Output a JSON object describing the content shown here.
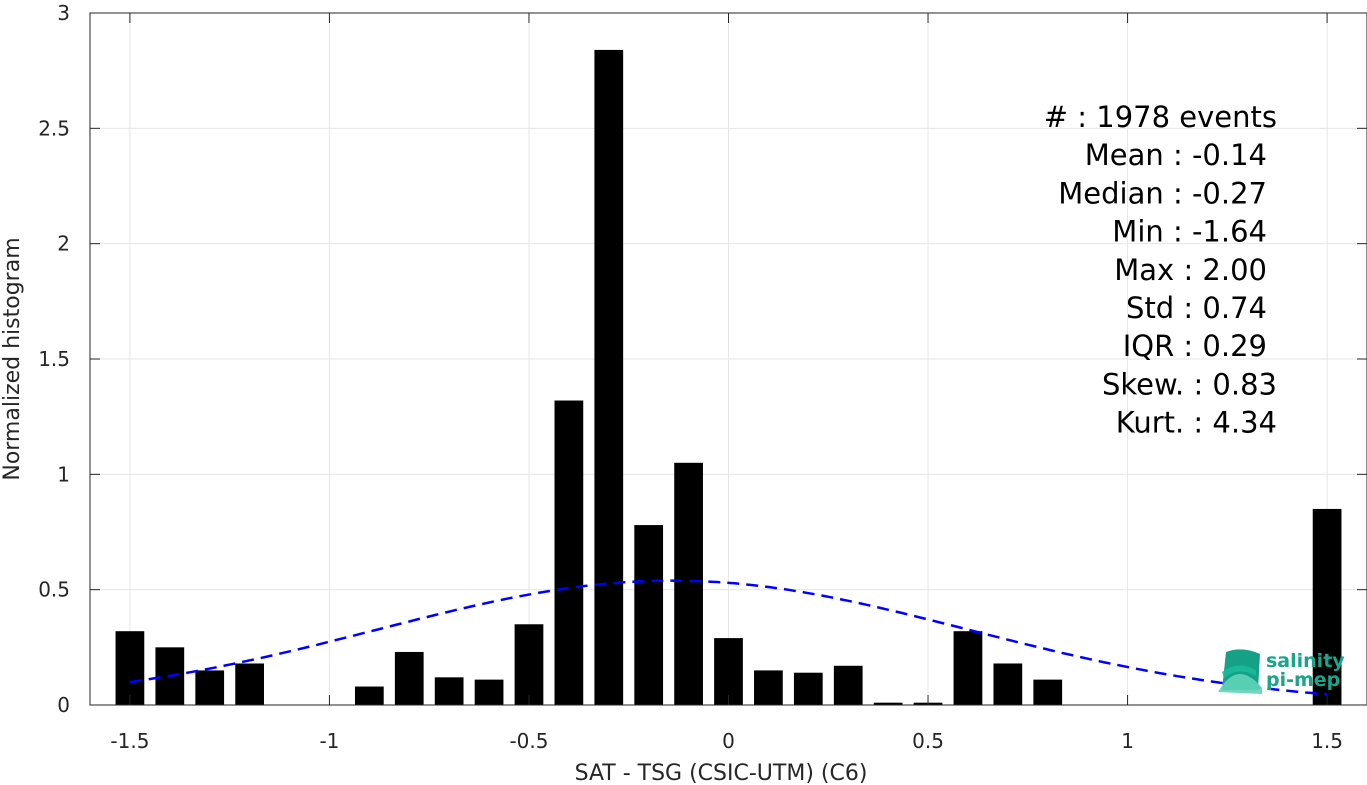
{
  "chart_data": {
    "type": "bar",
    "xlabel": "SAT - TSG (CSIC-UTM) (C6)",
    "ylabel": "Normalized histogram",
    "xlim": [
      -1.6,
      1.6
    ],
    "ylim": [
      0,
      3
    ],
    "xticks": [
      -1.5,
      -1,
      -0.5,
      0,
      0.5,
      1,
      1.5
    ],
    "xtick_labels": [
      "-1.5",
      "-1",
      "-0.5",
      "0",
      "0.5",
      "1",
      "1.5"
    ],
    "yticks": [
      0,
      0.5,
      1,
      1.5,
      2,
      2.5,
      3
    ],
    "ytick_labels": [
      "0",
      "0.5",
      "1",
      "1.5",
      "2",
      "2.5",
      "3"
    ],
    "grid": true,
    "bin_width": 0.1,
    "bar_color": "#000000",
    "x": [
      -1.5,
      -1.4,
      -1.3,
      -1.2,
      -1.1,
      -1.0,
      -0.9,
      -0.8,
      -0.7,
      -0.6,
      -0.5,
      -0.4,
      -0.3,
      -0.2,
      -0.1,
      0.0,
      0.1,
      0.2,
      0.3,
      0.4,
      0.5,
      0.6,
      0.7,
      0.8,
      0.9,
      1.0,
      1.1,
      1.2,
      1.3,
      1.4,
      1.5
    ],
    "values": [
      0.32,
      0.25,
      0.15,
      0.18,
      0,
      0,
      0.08,
      0.23,
      0.12,
      0.11,
      0.35,
      1.32,
      2.84,
      0.78,
      1.05,
      0.29,
      0.15,
      0.14,
      0.17,
      0.01,
      0.01,
      0.32,
      0.18,
      0.11,
      0,
      0,
      0,
      0,
      0,
      0,
      0.85
    ],
    "fit_curve": {
      "type": "normal",
      "mean": -0.14,
      "std": 0.74,
      "x_range": [
        -1.5,
        1.5
      ],
      "color": "#0000ff",
      "style": "dashed"
    },
    "annotations": [
      "#  : 1978 events",
      "Mean : -0.14",
      "Median : -0.27",
      "Min : -1.64",
      "Max : 2.00",
      "Std : 0.74",
      "IQR : 0.29",
      "Skew. : 0.83",
      "Kurt. : 4.34"
    ]
  },
  "logo": {
    "line1": "salinity",
    "line2": "pi-mep",
    "colors": [
      "#16a085",
      "#1abc9c",
      "#5fd3b8",
      "#0e6b5c"
    ]
  }
}
